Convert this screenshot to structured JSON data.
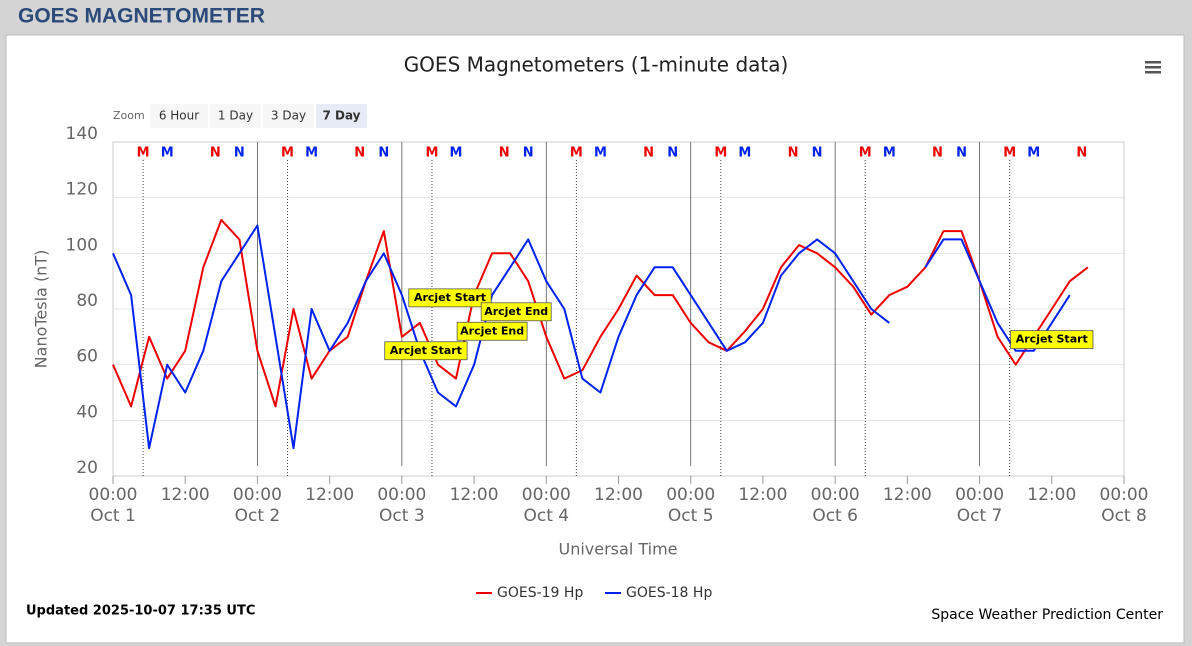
{
  "header": "GOES MAGNETOMETER",
  "chart_data": {
    "type": "line",
    "title": "GOES Magnetometers (1-minute data)",
    "zoom": {
      "label": "Zoom",
      "buttons": [
        "6 Hour",
        "1 Day",
        "3 Day",
        "7 Day"
      ],
      "selected": 3
    },
    "xlabel": "Universal Time",
    "ylabel": "NanoTesla (nT)",
    "xlim": [
      "Oct 1 00:00",
      "Oct 8 00:00"
    ],
    "xticks": [
      {
        "value": "Oct 1 00:00",
        "label": "00:00",
        "date": "Oct 1"
      },
      {
        "value": "Oct 1 12:00",
        "label": "12:00"
      },
      {
        "value": "Oct 2 00:00",
        "label": "00:00",
        "date": "Oct 2"
      },
      {
        "value": "Oct 2 12:00",
        "label": "12:00"
      },
      {
        "value": "Oct 3 00:00",
        "label": "00:00",
        "date": "Oct 3"
      },
      {
        "value": "Oct 3 12:00",
        "label": "12:00"
      },
      {
        "value": "Oct 4 00:00",
        "label": "00:00",
        "date": "Oct 4"
      },
      {
        "value": "Oct 4 12:00",
        "label": "12:00"
      },
      {
        "value": "Oct 5 00:00",
        "label": "00:00",
        "date": "Oct 5"
      },
      {
        "value": "Oct 5 12:00",
        "label": "12:00"
      },
      {
        "value": "Oct 6 00:00",
        "label": "00:00",
        "date": "Oct 6"
      },
      {
        "value": "Oct 6 12:00",
        "label": "12:00"
      },
      {
        "value": "Oct 7 00:00",
        "label": "00:00",
        "date": "Oct 7"
      },
      {
        "value": "Oct 7 12:00",
        "label": "12:00"
      },
      {
        "value": "Oct 8 00:00",
        "label": "00:00",
        "date": "Oct 8"
      }
    ],
    "ylim": [
      20,
      140
    ],
    "yticks": [
      20,
      40,
      60,
      80,
      100,
      120,
      140
    ],
    "grid": true,
    "x": [
      "Oct 1 00:00",
      "Oct 1 03:00",
      "Oct 1 06:00",
      "Oct 1 09:00",
      "Oct 1 12:00",
      "Oct 1 15:00",
      "Oct 1 18:00",
      "Oct 1 21:00",
      "Oct 2 00:00",
      "Oct 2 03:00",
      "Oct 2 06:00",
      "Oct 2 09:00",
      "Oct 2 12:00",
      "Oct 2 15:00",
      "Oct 2 18:00",
      "Oct 2 21:00",
      "Oct 3 00:00",
      "Oct 3 03:00",
      "Oct 3 06:00",
      "Oct 3 09:00",
      "Oct 3 12:00",
      "Oct 3 15:00",
      "Oct 3 18:00",
      "Oct 3 21:00",
      "Oct 4 00:00",
      "Oct 4 03:00",
      "Oct 4 06:00",
      "Oct 4 09:00",
      "Oct 4 12:00",
      "Oct 4 15:00",
      "Oct 4 18:00",
      "Oct 4 21:00",
      "Oct 5 00:00",
      "Oct 5 03:00",
      "Oct 5 06:00",
      "Oct 5 09:00",
      "Oct 5 12:00",
      "Oct 5 15:00",
      "Oct 5 18:00",
      "Oct 5 21:00",
      "Oct 6 00:00",
      "Oct 6 03:00",
      "Oct 6 06:00",
      "Oct 6 09:00",
      "Oct 6 12:00",
      "Oct 6 15:00",
      "Oct 6 18:00",
      "Oct 6 21:00",
      "Oct 7 00:00",
      "Oct 7 03:00",
      "Oct 7 06:00",
      "Oct 7 09:00",
      "Oct 7 12:00",
      "Oct 7 15:00",
      "Oct 7 18:00"
    ],
    "series": [
      {
        "name": "GOES-19 Hp",
        "color": "#ee0000",
        "values": [
          60,
          45,
          70,
          55,
          65,
          95,
          112,
          105,
          65,
          45,
          80,
          55,
          65,
          70,
          90,
          108,
          70,
          75,
          60,
          55,
          85,
          100,
          100,
          90,
          70,
          55,
          58,
          70,
          80,
          92,
          85,
          85,
          75,
          68,
          65,
          72,
          80,
          95,
          103,
          100,
          95,
          88,
          78,
          85,
          88,
          95,
          108,
          108,
          90,
          70,
          60,
          70,
          80,
          90,
          95
        ]
      },
      {
        "name": "GOES-18 Hp",
        "color": "#0022ee",
        "values": [
          100,
          85,
          30,
          60,
          50,
          65,
          90,
          100,
          110,
          70,
          30,
          80,
          65,
          75,
          90,
          100,
          85,
          65,
          50,
          45,
          60,
          85,
          95,
          105,
          90,
          80,
          55,
          50,
          70,
          85,
          95,
          95,
          85,
          75,
          65,
          68,
          75,
          92,
          100,
          105,
          100,
          90,
          80,
          75,
          null,
          95,
          105,
          105,
          90,
          75,
          65,
          65,
          75,
          85,
          null
        ]
      }
    ],
    "markers": [
      {
        "text": "M",
        "color": "#ee0000",
        "x": "Oct 1 05:00"
      },
      {
        "text": "M",
        "color": "#0022ee",
        "x": "Oct 1 09:00"
      },
      {
        "text": "N",
        "color": "#ee0000",
        "x": "Oct 1 17:00"
      },
      {
        "text": "N",
        "color": "#0022ee",
        "x": "Oct 1 21:00"
      },
      {
        "text": "M",
        "color": "#ee0000",
        "x": "Oct 2 05:00"
      },
      {
        "text": "M",
        "color": "#0022ee",
        "x": "Oct 2 09:00"
      },
      {
        "text": "N",
        "color": "#ee0000",
        "x": "Oct 2 17:00"
      },
      {
        "text": "N",
        "color": "#0022ee",
        "x": "Oct 2 21:00"
      },
      {
        "text": "M",
        "color": "#ee0000",
        "x": "Oct 3 05:00"
      },
      {
        "text": "M",
        "color": "#0022ee",
        "x": "Oct 3 09:00"
      },
      {
        "text": "N",
        "color": "#ee0000",
        "x": "Oct 3 17:00"
      },
      {
        "text": "N",
        "color": "#0022ee",
        "x": "Oct 3 21:00"
      },
      {
        "text": "M",
        "color": "#ee0000",
        "x": "Oct 4 05:00"
      },
      {
        "text": "M",
        "color": "#0022ee",
        "x": "Oct 4 09:00"
      },
      {
        "text": "N",
        "color": "#ee0000",
        "x": "Oct 4 17:00"
      },
      {
        "text": "N",
        "color": "#0022ee",
        "x": "Oct 4 21:00"
      },
      {
        "text": "M",
        "color": "#ee0000",
        "x": "Oct 5 05:00"
      },
      {
        "text": "M",
        "color": "#0022ee",
        "x": "Oct 5 09:00"
      },
      {
        "text": "N",
        "color": "#ee0000",
        "x": "Oct 5 17:00"
      },
      {
        "text": "N",
        "color": "#0022ee",
        "x": "Oct 5 21:00"
      },
      {
        "text": "M",
        "color": "#ee0000",
        "x": "Oct 6 05:00"
      },
      {
        "text": "M",
        "color": "#0022ee",
        "x": "Oct 6 09:00"
      },
      {
        "text": "N",
        "color": "#ee0000",
        "x": "Oct 6 17:00"
      },
      {
        "text": "N",
        "color": "#0022ee",
        "x": "Oct 6 21:00"
      },
      {
        "text": "M",
        "color": "#ee0000",
        "x": "Oct 7 05:00"
      },
      {
        "text": "M",
        "color": "#0022ee",
        "x": "Oct 7 09:00"
      },
      {
        "text": "N",
        "color": "#ee0000",
        "x": "Oct 7 17:00"
      }
    ],
    "annotations": [
      {
        "text": "Arcjet Start",
        "x": "Oct 3 08:00",
        "y": 84
      },
      {
        "text": "Arcjet End",
        "x": "Oct 3 19:00",
        "y": 79
      },
      {
        "text": "Arcjet End",
        "x": "Oct 3 15:00",
        "y": 72
      },
      {
        "text": "Arcjet Start",
        "x": "Oct 3 04:00",
        "y": 65
      },
      {
        "text": "Arcjet Start",
        "x": "Oct 7 12:00",
        "y": 69
      }
    ],
    "updated": "Updated 2025-10-07 17:35 UTC",
    "credit": "Space Weather Prediction Center"
  }
}
